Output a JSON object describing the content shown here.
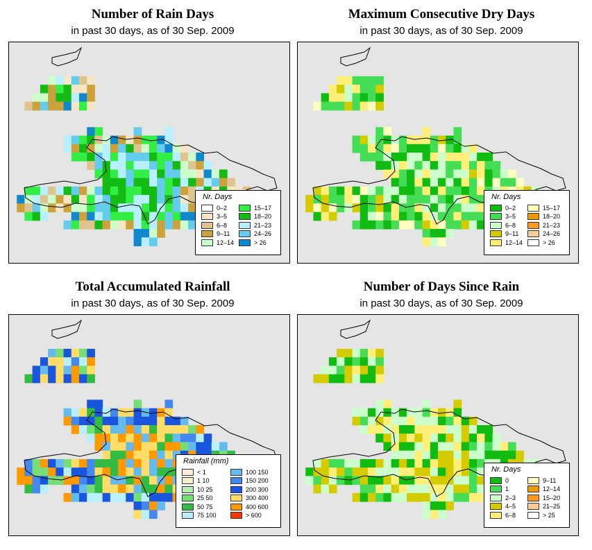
{
  "panels": [
    {
      "id": "rain_days",
      "title": "Number of Rain Days",
      "subtitle": "in past 30 days, as of  30 Sep. 2009",
      "legend": {
        "title": "Nr. Days",
        "items": [
          {
            "label": "0–2",
            "color": "#ffffff"
          },
          {
            "label": "3–5",
            "color": "#f5e6c8"
          },
          {
            "label": "6–8",
            "color": "#e0c490"
          },
          {
            "label": "9–11",
            "color": "#cca23c"
          },
          {
            "label": "12–14",
            "color": "#ccffcc"
          },
          {
            "label": "15–17",
            "color": "#33ee44"
          },
          {
            "label": "18–20",
            "color": "#14bb14"
          },
          {
            "label": "21–23",
            "color": "#b8f0ff"
          },
          {
            "label": "24–26",
            "color": "#66ccee"
          },
          {
            "label": "> 26",
            "color": "#1188cc"
          }
        ]
      }
    },
    {
      "id": "dry_days",
      "title": "Maximum Consecutive Dry Days",
      "subtitle": "in past 30 days, as of  30 Sep. 2009",
      "legend": {
        "title": "Nr. Days",
        "items": [
          {
            "label": "0–2",
            "color": "#11bb11"
          },
          {
            "label": "3–5",
            "color": "#44dd55"
          },
          {
            "label": "6–8",
            "color": "#ccffcc"
          },
          {
            "label": "9–11",
            "color": "#d4cc00"
          },
          {
            "label": "12–14",
            "color": "#ffee77"
          },
          {
            "label": "15–17",
            "color": "#ffffc0"
          },
          {
            "label": "18–20",
            "color": "#ee9900"
          },
          {
            "label": "21–23",
            "color": "#ff9922"
          },
          {
            "label": "24–26",
            "color": "#ffcc99"
          },
          {
            "label": "> 26",
            "color": "#ffffff"
          }
        ]
      }
    },
    {
      "id": "rainfall",
      "title": "Total Accumulated Rainfall",
      "subtitle": "in past 30 days, as of  30 Sep. 2009",
      "legend": {
        "title": "Rainfall (mm)",
        "items": [
          {
            "label": "< 1",
            "color": "#ffeedd"
          },
          {
            "label": "1   10",
            "color": "#f7efcc"
          },
          {
            "label": "10   25",
            "color": "#b4f0b4"
          },
          {
            "label": "25   50",
            "color": "#77dd77"
          },
          {
            "label": "50   75",
            "color": "#33bb44"
          },
          {
            "label": "75  100",
            "color": "#b8f0ff"
          },
          {
            "label": "100  150",
            "color": "#66bbee"
          },
          {
            "label": "150  200",
            "color": "#4488ee"
          },
          {
            "label": "200  300",
            "color": "#1a55dd"
          },
          {
            "label": "300  400",
            "color": "#ffdd66"
          },
          {
            "label": "400  600",
            "color": "#ff9900"
          },
          {
            "label": "> 600",
            "color": "#ff3300"
          }
        ]
      }
    },
    {
      "id": "days_since",
      "title": "Number of Days Since Rain",
      "subtitle": "in past 30 days, as of  30 Sep. 2009",
      "legend": {
        "title": "Nr. Days",
        "items": [
          {
            "label": "0",
            "color": "#11bb11"
          },
          {
            "label": "1",
            "color": "#44dd55"
          },
          {
            "label": "2–3",
            "color": "#ccffcc"
          },
          {
            "label": "4–5",
            "color": "#d4cc00"
          },
          {
            "label": "6–8",
            "color": "#ffee77"
          },
          {
            "label": "9–11",
            "color": "#ffffc0"
          },
          {
            "label": "12–14",
            "color": "#ee9900"
          },
          {
            "label": "15–20",
            "color": "#ff9922"
          },
          {
            "label": "21–25",
            "color": "#ffcc99"
          },
          {
            "label": "> 25",
            "color": "#ffffff"
          }
        ]
      }
    }
  ]
}
